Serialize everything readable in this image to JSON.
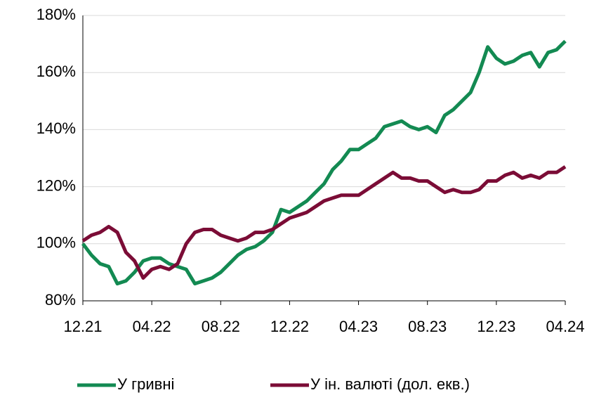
{
  "chart_data": {
    "type": "line",
    "categories": [
      "12.21",
      null,
      null,
      null,
      null,
      null,
      null,
      null,
      "04.22",
      null,
      null,
      null,
      null,
      null,
      null,
      null,
      "08.22",
      null,
      null,
      null,
      null,
      null,
      null,
      null,
      "12.22",
      null,
      null,
      null,
      null,
      null,
      null,
      null,
      "04.23",
      null,
      null,
      null,
      null,
      null,
      null,
      null,
      "08.23",
      null,
      null,
      null,
      null,
      null,
      null,
      null,
      "12.23",
      null,
      null,
      null,
      null,
      null,
      null,
      null,
      "04.24"
    ],
    "series": [
      {
        "name": "У гривні",
        "color": "#138a52",
        "values": [
          100,
          96,
          93,
          92,
          86,
          87,
          90,
          94,
          95,
          95,
          93,
          92,
          91,
          86,
          87,
          88,
          90,
          93,
          96,
          98,
          99,
          101,
          104,
          112,
          111,
          113,
          115,
          118,
          121,
          126,
          129,
          133,
          133,
          135,
          137,
          141,
          142,
          143,
          141,
          140,
          141,
          139,
          145,
          147,
          150,
          153,
          160,
          169,
          165,
          163,
          164,
          166,
          167,
          162,
          167,
          168,
          171
        ]
      },
      {
        "name": "У ін. валюті (дол. екв.)",
        "color": "#7b0c36",
        "values": [
          101,
          103,
          104,
          106,
          104,
          97,
          94,
          88,
          91,
          92,
          91,
          93,
          100,
          104,
          105,
          105,
          103,
          102,
          101,
          102,
          104,
          104,
          105,
          107,
          109,
          110,
          111,
          113,
          115,
          116,
          117,
          117,
          117,
          119,
          121,
          123,
          125,
          123,
          123,
          122,
          122,
          120,
          118,
          119,
          118,
          118,
          119,
          122,
          122,
          124,
          125,
          123,
          124,
          123,
          125,
          125,
          127
        ]
      }
    ],
    "ylim": [
      80,
      180
    ],
    "yticks": [
      {
        "value": 80,
        "label": "80%"
      },
      {
        "value": 100,
        "label": "100%"
      },
      {
        "value": 120,
        "label": "120%"
      },
      {
        "value": 140,
        "label": "140%"
      },
      {
        "value": 160,
        "label": "160%"
      },
      {
        "value": 180,
        "label": "180%"
      }
    ],
    "grid": true
  }
}
